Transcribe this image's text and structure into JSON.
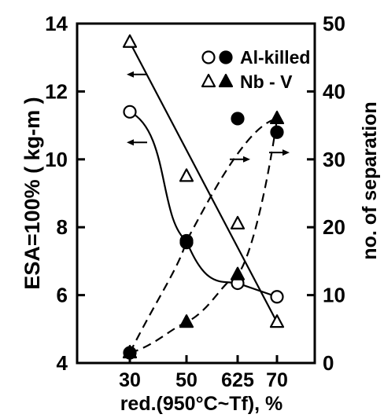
{
  "chart_data": {
    "type": "scatter",
    "categories": [
      "30",
      "50",
      "625",
      "70"
    ],
    "left_axis": {
      "label": "ESA=100% ( kg-m )",
      "ticks": [
        4,
        6,
        8,
        10,
        12,
        14
      ],
      "range": [
        4,
        14
      ]
    },
    "right_axis": {
      "label": "no. of separation",
      "ticks": [
        0,
        10,
        20,
        30,
        40,
        50
      ],
      "range": [
        0,
        50
      ]
    },
    "xlabel": "red.(950°C~Tf), %",
    "legend": {
      "placement": "top-right",
      "entries": [
        {
          "label": "Al-killed",
          "open_marker": "circle",
          "filled_marker": "circle"
        },
        {
          "label": "Nb - V",
          "open_marker": "triangle",
          "filled_marker": "triangle"
        }
      ]
    },
    "series": [
      {
        "axis": "left",
        "marker": "open-circle",
        "line": "solid",
        "x": [
          "30",
          "50",
          "625",
          "70"
        ],
        "values": [
          11.4,
          7.55,
          6.35,
          5.95
        ]
      },
      {
        "axis": "left",
        "marker": "open-triangle",
        "line": "solid",
        "x": [
          "30",
          "50",
          "625",
          "70"
        ],
        "values": [
          13.45,
          9.5,
          8.1,
          5.2
        ]
      },
      {
        "axis": "right",
        "marker": "filled-circle",
        "line": "dashed",
        "x": [
          "30",
          "50",
          "625",
          "70"
        ],
        "values": [
          1.5,
          18,
          36,
          34
        ]
      },
      {
        "axis": "right",
        "marker": "filled-triangle",
        "line": "dashed",
        "x": [
          "30",
          "50",
          "625",
          "70"
        ],
        "values": [
          1.5,
          6,
          13,
          36
        ]
      }
    ],
    "annotations": [
      {
        "type": "left-arrow",
        "x": "30",
        "y_left": 12.5
      },
      {
        "type": "left-arrow",
        "x": "30",
        "y_left": 10.5
      },
      {
        "type": "right-arrow",
        "x": "625",
        "y_right": 30
      },
      {
        "type": "right-arrow",
        "x": "70",
        "y_right": 31
      }
    ]
  }
}
